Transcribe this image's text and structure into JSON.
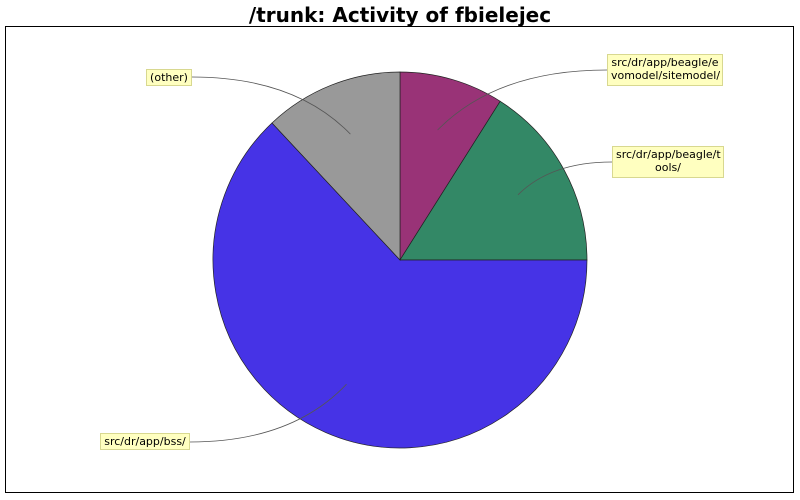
{
  "chart_data": {
    "type": "pie",
    "title": "/trunk: Activity of fbielejec",
    "slices": [
      {
        "label": "src/dr/app/beagle/e\nvomodel/sitemodel/",
        "value": 9,
        "color": "#993377"
      },
      {
        "label": "src/dr/app/beagle/t\nools/",
        "value": 16,
        "color": "#338866"
      },
      {
        "label": "src/dr/app/bss/",
        "value": 63,
        "color": "#4633e6"
      },
      {
        "label": "(other)",
        "value": 12,
        "color": "#999999"
      }
    ],
    "start_angle": "12 o'clock",
    "direction": "clockwise",
    "legend": "callout labels"
  }
}
